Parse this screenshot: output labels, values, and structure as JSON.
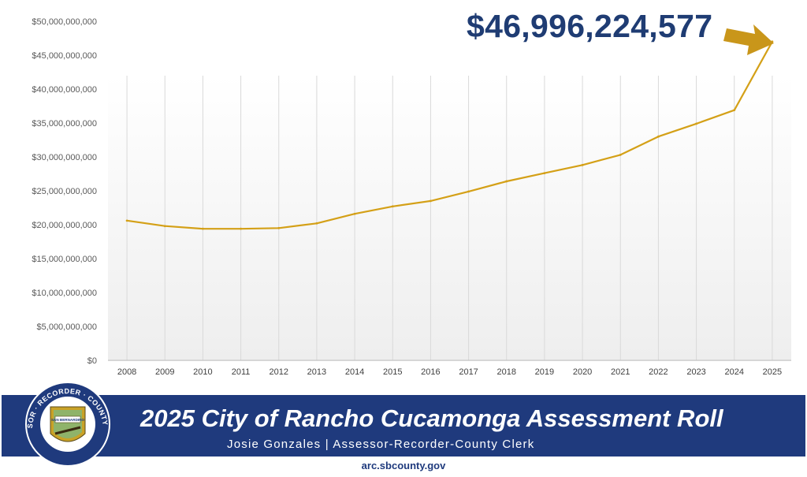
{
  "chart_data": {
    "type": "line",
    "x": [
      "2008",
      "2009",
      "2010",
      "2011",
      "2012",
      "2013",
      "2014",
      "2015",
      "2016",
      "2017",
      "2018",
      "2019",
      "2020",
      "2021",
      "2022",
      "2023",
      "2024",
      "2025"
    ],
    "series": [
      {
        "values": [
          20600000000,
          19800000000,
          19400000000,
          19400000000,
          19500000000,
          20200000000,
          21600000000,
          22700000000,
          23500000000,
          24900000000,
          26400000000,
          27600000000,
          28800000000,
          30300000000,
          33000000000,
          34900000000,
          36900000000,
          46996224577
        ],
        "color": "#d4a017"
      }
    ],
    "y_ticks": [
      "$0",
      "$5,000,000,000",
      "$10,000,000,000",
      "$15,000,000,000",
      "$20,000,000,000",
      "$25,000,000,000",
      "$30,000,000,000",
      "$35,000,000,000",
      "$40,000,000,000",
      "$45,000,000,000",
      "$50,000,000,000"
    ],
    "ylim": [
      0,
      50000000000
    ],
    "grid": "vertical",
    "annotation": {
      "text": "$46,996,224,577",
      "color": "#1f3c73",
      "arrow_color": "#c9961a"
    }
  },
  "banner": {
    "title": "2025 City of Rancho Cucamonga Assessment Roll",
    "subtitle": "Josie Gonzales | Assessor-Recorder-County Clerk",
    "seal_text": "ASSESSOR · RECORDER · COUNTY CLERK",
    "seal_inner": "SAN BERNARDINO",
    "background": "#1f3a7d"
  },
  "footer": {
    "website": "arc.sbcounty.gov"
  }
}
